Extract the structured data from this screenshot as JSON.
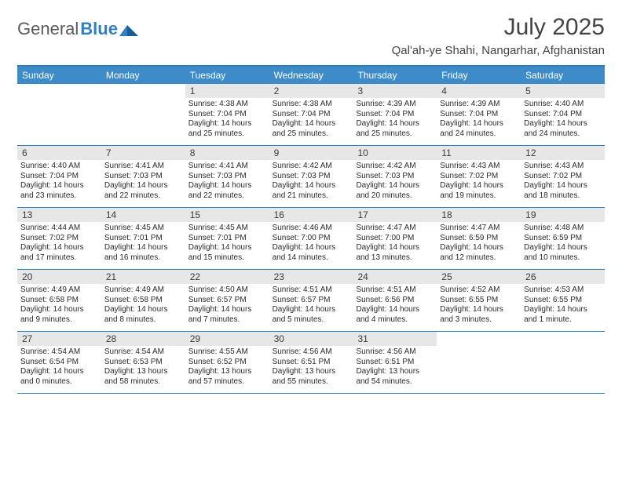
{
  "brand": {
    "part1": "General",
    "part2": "Blue"
  },
  "title": "July 2025",
  "location": "Qal'ah-ye Shahi, Nangarhar, Afghanistan",
  "colors": {
    "header_bg": "#3d8cc9",
    "header_border": "#2f7fc1",
    "daynum_bg": "#e7e7e7",
    "text": "#2a2a2a",
    "logo_gray": "#5a5a5a",
    "logo_blue": "#2f7fc1"
  },
  "weekdays": [
    "Sunday",
    "Monday",
    "Tuesday",
    "Wednesday",
    "Thursday",
    "Friday",
    "Saturday"
  ],
  "weeks": [
    [
      null,
      null,
      {
        "n": "1",
        "sr": "4:38 AM",
        "ss": "7:04 PM",
        "dl": "14 hours and 25 minutes."
      },
      {
        "n": "2",
        "sr": "4:38 AM",
        "ss": "7:04 PM",
        "dl": "14 hours and 25 minutes."
      },
      {
        "n": "3",
        "sr": "4:39 AM",
        "ss": "7:04 PM",
        "dl": "14 hours and 25 minutes."
      },
      {
        "n": "4",
        "sr": "4:39 AM",
        "ss": "7:04 PM",
        "dl": "14 hours and 24 minutes."
      },
      {
        "n": "5",
        "sr": "4:40 AM",
        "ss": "7:04 PM",
        "dl": "14 hours and 24 minutes."
      }
    ],
    [
      {
        "n": "6",
        "sr": "4:40 AM",
        "ss": "7:04 PM",
        "dl": "14 hours and 23 minutes."
      },
      {
        "n": "7",
        "sr": "4:41 AM",
        "ss": "7:03 PM",
        "dl": "14 hours and 22 minutes."
      },
      {
        "n": "8",
        "sr": "4:41 AM",
        "ss": "7:03 PM",
        "dl": "14 hours and 22 minutes."
      },
      {
        "n": "9",
        "sr": "4:42 AM",
        "ss": "7:03 PM",
        "dl": "14 hours and 21 minutes."
      },
      {
        "n": "10",
        "sr": "4:42 AM",
        "ss": "7:03 PM",
        "dl": "14 hours and 20 minutes."
      },
      {
        "n": "11",
        "sr": "4:43 AM",
        "ss": "7:02 PM",
        "dl": "14 hours and 19 minutes."
      },
      {
        "n": "12",
        "sr": "4:43 AM",
        "ss": "7:02 PM",
        "dl": "14 hours and 18 minutes."
      }
    ],
    [
      {
        "n": "13",
        "sr": "4:44 AM",
        "ss": "7:02 PM",
        "dl": "14 hours and 17 minutes."
      },
      {
        "n": "14",
        "sr": "4:45 AM",
        "ss": "7:01 PM",
        "dl": "14 hours and 16 minutes."
      },
      {
        "n": "15",
        "sr": "4:45 AM",
        "ss": "7:01 PM",
        "dl": "14 hours and 15 minutes."
      },
      {
        "n": "16",
        "sr": "4:46 AM",
        "ss": "7:00 PM",
        "dl": "14 hours and 14 minutes."
      },
      {
        "n": "17",
        "sr": "4:47 AM",
        "ss": "7:00 PM",
        "dl": "14 hours and 13 minutes."
      },
      {
        "n": "18",
        "sr": "4:47 AM",
        "ss": "6:59 PM",
        "dl": "14 hours and 12 minutes."
      },
      {
        "n": "19",
        "sr": "4:48 AM",
        "ss": "6:59 PM",
        "dl": "14 hours and 10 minutes."
      }
    ],
    [
      {
        "n": "20",
        "sr": "4:49 AM",
        "ss": "6:58 PM",
        "dl": "14 hours and 9 minutes."
      },
      {
        "n": "21",
        "sr": "4:49 AM",
        "ss": "6:58 PM",
        "dl": "14 hours and 8 minutes."
      },
      {
        "n": "22",
        "sr": "4:50 AM",
        "ss": "6:57 PM",
        "dl": "14 hours and 7 minutes."
      },
      {
        "n": "23",
        "sr": "4:51 AM",
        "ss": "6:57 PM",
        "dl": "14 hours and 5 minutes."
      },
      {
        "n": "24",
        "sr": "4:51 AM",
        "ss": "6:56 PM",
        "dl": "14 hours and 4 minutes."
      },
      {
        "n": "25",
        "sr": "4:52 AM",
        "ss": "6:55 PM",
        "dl": "14 hours and 3 minutes."
      },
      {
        "n": "26",
        "sr": "4:53 AM",
        "ss": "6:55 PM",
        "dl": "14 hours and 1 minute."
      }
    ],
    [
      {
        "n": "27",
        "sr": "4:54 AM",
        "ss": "6:54 PM",
        "dl": "14 hours and 0 minutes."
      },
      {
        "n": "28",
        "sr": "4:54 AM",
        "ss": "6:53 PM",
        "dl": "13 hours and 58 minutes."
      },
      {
        "n": "29",
        "sr": "4:55 AM",
        "ss": "6:52 PM",
        "dl": "13 hours and 57 minutes."
      },
      {
        "n": "30",
        "sr": "4:56 AM",
        "ss": "6:51 PM",
        "dl": "13 hours and 55 minutes."
      },
      {
        "n": "31",
        "sr": "4:56 AM",
        "ss": "6:51 PM",
        "dl": "13 hours and 54 minutes."
      },
      null,
      null
    ]
  ],
  "labels": {
    "sunrise": "Sunrise:",
    "sunset": "Sunset:",
    "daylight": "Daylight:"
  }
}
